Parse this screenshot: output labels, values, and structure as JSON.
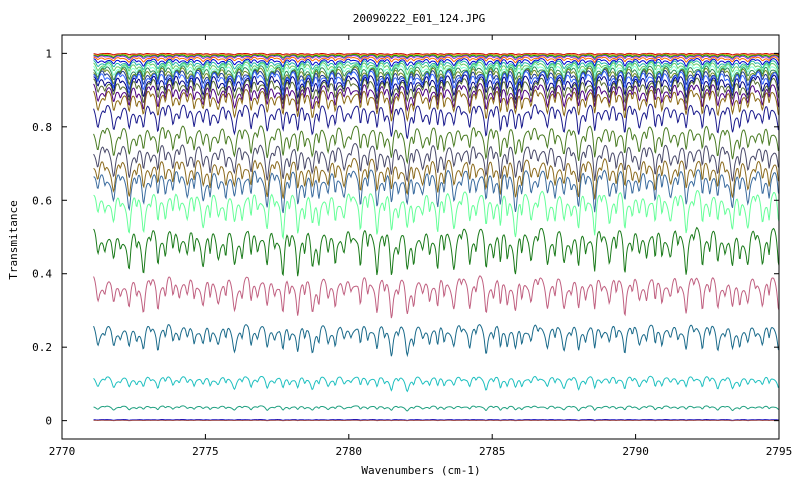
{
  "chart_data": {
    "type": "line",
    "title": "20090222_E01_124.JPG",
    "xlabel": "Wavenumbers (cm-1)",
    "ylabel": "Transmitance",
    "xlim": [
      2770,
      2795
    ],
    "ylim": [
      -0.05,
      1.05
    ],
    "xticks": [
      2770,
      2775,
      2780,
      2785,
      2790,
      2795
    ],
    "xtick_labels": [
      "2770",
      "2775",
      "2780",
      "2785",
      "2790",
      "2795"
    ],
    "yticks": [
      0,
      0.2,
      0.4,
      0.6,
      0.8,
      1
    ],
    "ytick_labels": [
      "0",
      "0.2",
      "0.4",
      "0.6",
      "0.8",
      "1"
    ],
    "x_range_data": [
      2771.1,
      2795
    ],
    "grid": false,
    "legend": "none",
    "series": [
      {
        "color": "#cc0000",
        "baseline": 1.0,
        "depth": 0.004
      },
      {
        "color": "#d4a017",
        "baseline": 0.998,
        "depth": 0.006
      },
      {
        "color": "#00a000",
        "baseline": 0.996,
        "depth": 0.008
      },
      {
        "color": "#8a2be2",
        "baseline": 0.994,
        "depth": 0.01
      },
      {
        "color": "#ff6600",
        "baseline": 0.99,
        "depth": 0.014
      },
      {
        "color": "#0000cc",
        "baseline": 0.985,
        "depth": 0.02
      },
      {
        "color": "#20b2aa",
        "baseline": 0.98,
        "depth": 0.025
      },
      {
        "color": "#66cc66",
        "baseline": 0.975,
        "depth": 0.03
      },
      {
        "color": "#7fffd4",
        "baseline": 0.97,
        "depth": 0.035
      },
      {
        "color": "#2e8b57",
        "baseline": 0.965,
        "depth": 0.04
      },
      {
        "color": "#6b8e23",
        "baseline": 0.96,
        "depth": 0.045
      },
      {
        "color": "#1e3a8a",
        "baseline": 0.955,
        "depth": 0.05
      },
      {
        "color": "#3366ff",
        "baseline": 0.95,
        "depth": 0.055
      },
      {
        "color": "#000080",
        "baseline": 0.94,
        "depth": 0.06
      },
      {
        "color": "#556b2f",
        "baseline": 0.93,
        "depth": 0.065
      },
      {
        "color": "#4b0082",
        "baseline": 0.915,
        "depth": 0.07
      },
      {
        "color": "#8b6914",
        "baseline": 0.9,
        "depth": 0.075
      },
      {
        "color": "#1a1a8c",
        "baseline": 0.86,
        "depth": 0.08
      },
      {
        "color": "#4a7c23",
        "baseline": 0.8,
        "depth": 0.085
      },
      {
        "color": "#4a4a6a",
        "baseline": 0.75,
        "depth": 0.09
      },
      {
        "color": "#8b6b1e",
        "baseline": 0.71,
        "depth": 0.095
      },
      {
        "color": "#3a6b9e",
        "baseline": 0.68,
        "depth": 0.1
      },
      {
        "color": "#66ff99",
        "baseline": 0.62,
        "depth": 0.11
      },
      {
        "color": "#1a7a1a",
        "baseline": 0.52,
        "depth": 0.12
      },
      {
        "color": "#c06080",
        "baseline": 0.39,
        "depth": 0.1
      },
      {
        "color": "#1a6a8a",
        "baseline": 0.26,
        "depth": 0.075
      },
      {
        "color": "#20c0c0",
        "baseline": 0.12,
        "depth": 0.035
      },
      {
        "color": "#20a080",
        "baseline": 0.04,
        "depth": 0.012
      },
      {
        "color": "#0000cc",
        "baseline": 0.003,
        "depth": 0.002
      },
      {
        "color": "#a05050",
        "baseline": 0.001,
        "depth": 0.001
      }
    ]
  }
}
